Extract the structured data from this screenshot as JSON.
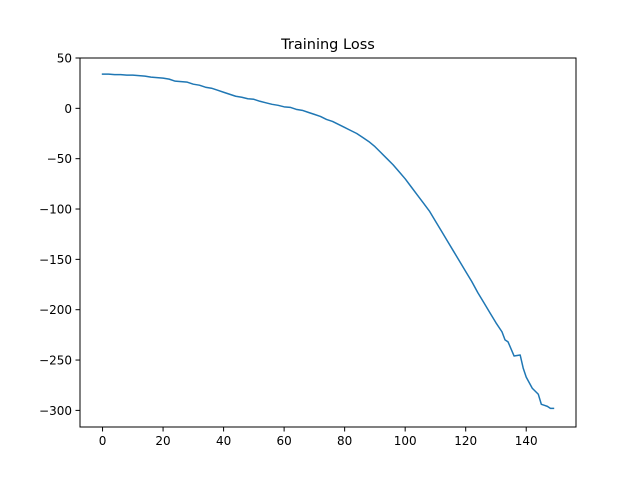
{
  "chart_data": {
    "type": "line",
    "title": "Training Loss",
    "xlabel": "",
    "ylabel": "",
    "xlim": [
      -7.45,
      156.45
    ],
    "ylim": [
      -316.5,
      50
    ],
    "xticks": [
      0,
      20,
      40,
      60,
      80,
      100,
      120,
      140
    ],
    "yticks": [
      -300,
      -250,
      -200,
      -150,
      -100,
      -50,
      0,
      50
    ],
    "xtick_labels": [
      "0",
      "20",
      "40",
      "60",
      "80",
      "100",
      "120",
      "140"
    ],
    "ytick_labels": [
      "−300",
      "−250",
      "−200",
      "−150",
      "−100",
      "−50",
      "0",
      "50"
    ],
    "grid": false,
    "series": [
      {
        "color": "#1f77b4",
        "x": [
          0,
          2,
          4,
          6,
          8,
          10,
          12,
          14,
          16,
          18,
          20,
          22,
          24,
          26,
          28,
          30,
          32,
          34,
          36,
          38,
          40,
          42,
          44,
          46,
          48,
          50,
          52,
          54,
          56,
          58,
          60,
          62,
          64,
          66,
          68,
          70,
          72,
          74,
          76,
          78,
          80,
          82,
          84,
          86,
          88,
          90,
          92,
          94,
          96,
          98,
          100,
          102,
          104,
          106,
          108,
          110,
          112,
          114,
          116,
          118,
          120,
          122,
          124,
          126,
          128,
          130,
          132,
          133,
          134,
          136,
          138,
          139,
          140,
          142,
          144,
          145,
          146,
          147,
          148,
          149
        ],
        "y": [
          34,
          34,
          33.5,
          33.5,
          33,
          33,
          32.5,
          32,
          31,
          30.5,
          30,
          29,
          27,
          26.5,
          26,
          24,
          23,
          21,
          20,
          18,
          16,
          14,
          12,
          11,
          9.5,
          9,
          7,
          5.5,
          4,
          3,
          1.5,
          1,
          -1,
          -2,
          -4,
          -6,
          -8,
          -11,
          -13,
          -16,
          -19,
          -22,
          -25,
          -29,
          -33,
          -38,
          -44,
          -50,
          -56,
          -63,
          -70,
          -78,
          -86,
          -94,
          -102,
          -112,
          -122,
          -132,
          -142,
          -152,
          -162,
          -172,
          -183,
          -193,
          -203,
          -213,
          -222,
          -230,
          -232,
          -246,
          -245,
          -258,
          -267,
          -278,
          -284,
          -294,
          -295,
          -296,
          -298,
          -298
        ]
      }
    ]
  }
}
